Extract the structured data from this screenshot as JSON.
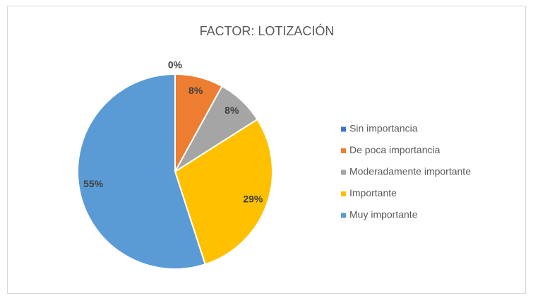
{
  "chart_data": {
    "type": "pie",
    "title": "FACTOR: LOTIZACIÓN",
    "categories": [
      "Sin importancia",
      "De poca importancia",
      "Moderadamente importante",
      "Importante",
      "Muy importante"
    ],
    "values": [
      0,
      8,
      8,
      29,
      55
    ],
    "value_labels": [
      "0%",
      "8%",
      "8%",
      "29%",
      "55%"
    ],
    "colors": [
      "#4472c4",
      "#ed7d31",
      "#a5a5a5",
      "#ffc000",
      "#5b9bd5"
    ],
    "legend": "right"
  }
}
